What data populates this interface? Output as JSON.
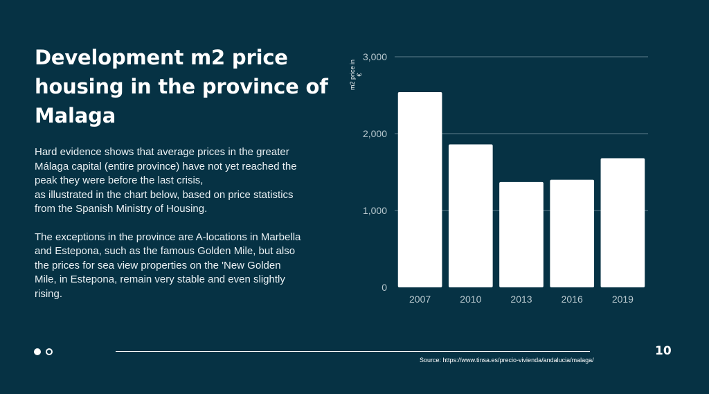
{
  "slide": {
    "title": "Development m2 price housing in the province of Malaga",
    "paragraph1_lines": [
      "Hard evidence shows that average prices in the greater",
      "Málaga capital (entire province) have not yet reached the",
      "peak they were before the last crisis,",
      "as illustrated in the chart below, based on price statistics",
      "from the Spanish Ministry of Housing."
    ],
    "paragraph2_lines": [
      "The exceptions in the province are A-locations in Marbella",
      "and Estepona, such as the famous Golden Mile, but also",
      "the prices for sea view properties on the 'New Golden",
      "Mile, in Estepona, remain very stable and even slightly",
      "rising."
    ],
    "source": "Source: https://www.tinsa.es/precio-vivienda/andalucia/malaga/",
    "page_number": "10"
  },
  "colors": {
    "background": "#063244",
    "bar": "#ffffff",
    "grid": "#5f7f8c",
    "axis_text": "#b9c9cf"
  },
  "chart_data": {
    "type": "bar",
    "categories": [
      "2007",
      "2010",
      "2013",
      "2016",
      "2019"
    ],
    "values": [
      2540,
      1860,
      1370,
      1400,
      1680
    ],
    "title": "",
    "xlabel": "",
    "ylabel": "m2 price in €",
    "ylim": [
      0,
      3000
    ],
    "yticks": [
      0,
      1000,
      2000,
      3000
    ],
    "ytick_labels": [
      "0",
      "1,000",
      "2,000",
      "3,000"
    ],
    "grid": true
  }
}
